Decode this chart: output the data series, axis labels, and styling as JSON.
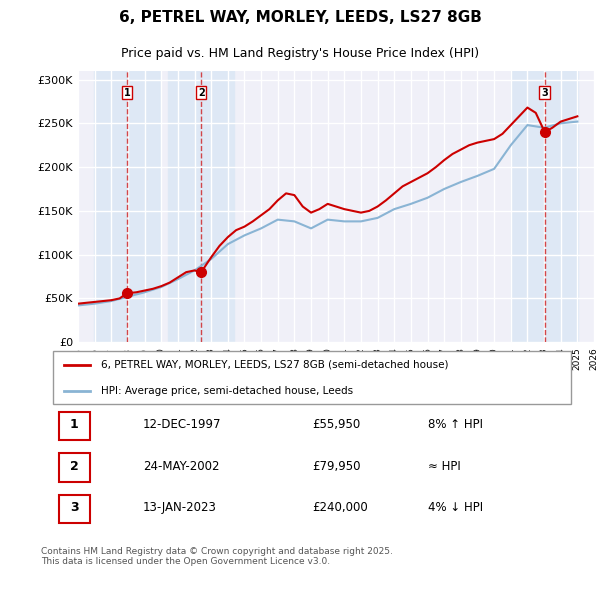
{
  "title": "6, PETREL WAY, MORLEY, LEEDS, LS27 8GB",
  "subtitle": "Price paid vs. HM Land Registry's House Price Index (HPI)",
  "legend_label_red": "6, PETREL WAY, MORLEY, LEEDS, LS27 8GB (semi-detached house)",
  "legend_label_blue": "HPI: Average price, semi-detached house, Leeds",
  "footer": "Contains HM Land Registry data © Crown copyright and database right 2025.\nThis data is licensed under the Open Government Licence v3.0.",
  "transactions": [
    {
      "num": 1,
      "date": "12-DEC-1997",
      "price": 55950,
      "hpi_note": "8% ↑ HPI",
      "year": 1997.95
    },
    {
      "num": 2,
      "date": "24-MAY-2002",
      "price": 79950,
      "hpi_note": "≈ HPI",
      "year": 2002.4
    },
    {
      "num": 3,
      "date": "13-JAN-2023",
      "price": 240000,
      "hpi_note": "4% ↓ HPI",
      "year": 2023.04
    }
  ],
  "ylim": [
    0,
    310000
  ],
  "yticks": [
    0,
    50000,
    100000,
    150000,
    200000,
    250000,
    300000
  ],
  "ytick_labels": [
    "£0",
    "£50K",
    "£100K",
    "£150K",
    "£200K",
    "£250K",
    "£300K"
  ],
  "background_color": "#ffffff",
  "plot_bg_color": "#f0f0f8",
  "grid_color": "#ffffff",
  "red_color": "#cc0000",
  "blue_color": "#8ab4d4",
  "shade_color": "#dde8f5",
  "hpi_line": {
    "years": [
      1995,
      1996,
      1997,
      1998,
      1999,
      2000,
      2001,
      2002,
      2003,
      2004,
      2005,
      2006,
      2007,
      2008,
      2009,
      2010,
      2011,
      2012,
      2013,
      2014,
      2015,
      2016,
      2017,
      2018,
      2019,
      2020,
      2021,
      2022,
      2023,
      2024,
      2025
    ],
    "values": [
      42000,
      44000,
      47000,
      52000,
      57000,
      63000,
      72000,
      82000,
      95000,
      112000,
      122000,
      130000,
      140000,
      138000,
      130000,
      140000,
      138000,
      138000,
      142000,
      152000,
      158000,
      165000,
      175000,
      183000,
      190000,
      198000,
      225000,
      248000,
      245000,
      250000,
      252000
    ]
  },
  "price_line": {
    "years": [
      1995.0,
      1995.5,
      1996.0,
      1996.5,
      1997.0,
      1997.5,
      1997.95,
      1998.5,
      1999.0,
      1999.5,
      2000.0,
      2000.5,
      2001.0,
      2001.5,
      2002.0,
      2002.4,
      2003.0,
      2003.5,
      2004.0,
      2004.5,
      2005.0,
      2005.5,
      2006.0,
      2006.5,
      2007.0,
      2007.5,
      2008.0,
      2008.5,
      2009.0,
      2009.5,
      2010.0,
      2010.5,
      2011.0,
      2011.5,
      2012.0,
      2012.5,
      2013.0,
      2013.5,
      2014.0,
      2014.5,
      2015.0,
      2015.5,
      2016.0,
      2016.5,
      2017.0,
      2017.5,
      2018.0,
      2018.5,
      2019.0,
      2019.5,
      2020.0,
      2020.5,
      2021.0,
      2021.5,
      2022.0,
      2022.5,
      2023.04,
      2023.5,
      2024.0,
      2024.5,
      2025.0
    ],
    "values": [
      44000,
      45000,
      46000,
      47000,
      48000,
      50000,
      55950,
      57000,
      59000,
      61000,
      64000,
      68000,
      74000,
      80000,
      82000,
      79950,
      97000,
      110000,
      120000,
      128000,
      132000,
      138000,
      145000,
      152000,
      162000,
      170000,
      168000,
      155000,
      148000,
      152000,
      158000,
      155000,
      152000,
      150000,
      148000,
      150000,
      155000,
      162000,
      170000,
      178000,
      183000,
      188000,
      193000,
      200000,
      208000,
      215000,
      220000,
      225000,
      228000,
      230000,
      232000,
      238000,
      248000,
      258000,
      268000,
      262000,
      240000,
      245000,
      252000,
      255000,
      258000
    ]
  }
}
